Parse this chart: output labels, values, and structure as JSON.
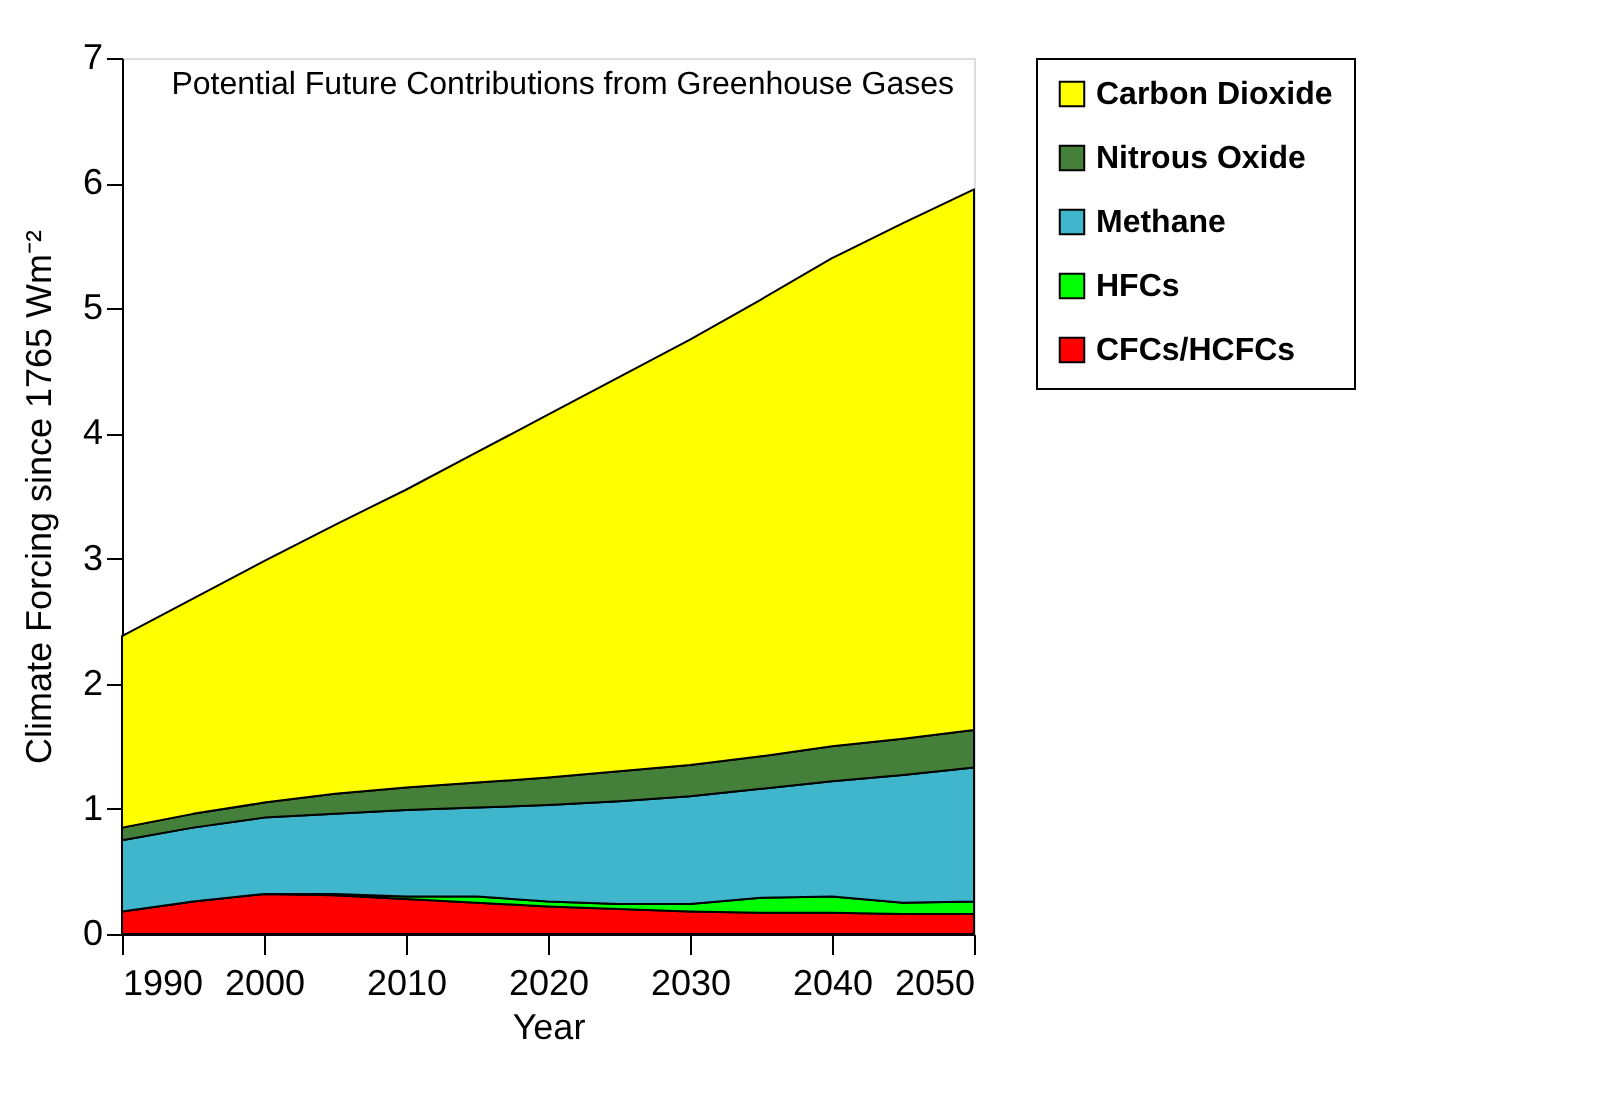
{
  "chart_data": {
    "type": "area",
    "title": "Potential Future Contributions from Greenhouse Gases",
    "xlabel": "Year",
    "ylabel": "Climate Forcing since 1765 Wm⁻²",
    "x": [
      1990,
      1995,
      2000,
      2005,
      2010,
      2015,
      2020,
      2025,
      2030,
      2035,
      2040,
      2045,
      2050
    ],
    "stacked": true,
    "series": [
      {
        "name": "CFCs/HCFCs",
        "color": "#ff0000",
        "values": [
          0.18,
          0.26,
          0.32,
          0.31,
          0.28,
          0.25,
          0.22,
          0.2,
          0.18,
          0.17,
          0.17,
          0.16,
          0.16
        ]
      },
      {
        "name": "HFCs",
        "color": "#00ff00",
        "values": [
          0,
          0,
          0,
          0.01,
          0.02,
          0.05,
          0.04,
          0.04,
          0.06,
          0.12,
          0.13,
          0.09,
          0.1
        ]
      },
      {
        "name": "Methane",
        "color": "#3fb6cc",
        "values": [
          0.57,
          0.59,
          0.61,
          0.64,
          0.69,
          0.71,
          0.77,
          0.82,
          0.86,
          0.87,
          0.92,
          1.02,
          1.07
        ]
      },
      {
        "name": "Nitrous Oxide",
        "color": "#44803a",
        "values": [
          0.1,
          0.11,
          0.12,
          0.16,
          0.18,
          0.2,
          0.22,
          0.24,
          0.25,
          0.26,
          0.28,
          0.29,
          0.3
        ]
      },
      {
        "name": "Carbon Dioxide",
        "color": "#ffff00",
        "values": [
          1.53,
          1.72,
          1.93,
          2.15,
          2.38,
          2.64,
          2.9,
          3.15,
          3.4,
          3.65,
          3.9,
          4.12,
          4.32
        ]
      }
    ],
    "xlim": [
      1990,
      2050
    ],
    "xticks": [
      1990,
      2000,
      2010,
      2020,
      2030,
      2040,
      2050
    ],
    "ylim": [
      0,
      7
    ],
    "yticks": [
      0,
      1,
      2,
      3,
      4,
      5,
      6,
      7
    ],
    "grid": false,
    "legend": "right"
  }
}
